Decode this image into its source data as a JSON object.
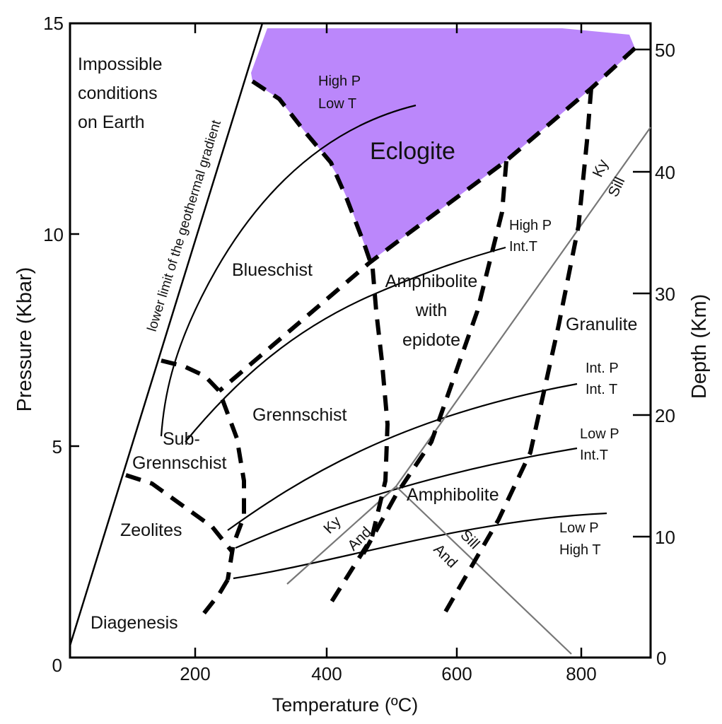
{
  "axes": {
    "x_label": "Temperature (ºC)",
    "y_left_label": "Pressure (Kbar)",
    "y_right_label": "Depth (Km)",
    "x_ticks": [
      "200",
      "400",
      "600",
      "800"
    ],
    "y_left_ticks": [
      "0",
      "5",
      "10",
      "15"
    ],
    "y_right_ticks": [
      "0",
      "10",
      "20",
      "30",
      "40",
      "50"
    ]
  },
  "regions": {
    "impossible": [
      "Impossible",
      "conditions",
      "on Earth"
    ],
    "geothermal_limit": "lower limit of the geothermal gradient",
    "eclogite": "Eclogite",
    "blueschist": "Blueschist",
    "amphibolite_epidote": [
      "Amphibolite",
      "with",
      "epidote"
    ],
    "granulite": "Granulite",
    "greenschist": "Grennschist",
    "sub_greenschist": [
      "Sub-",
      "Grennschist"
    ],
    "zeolites": "Zeolites",
    "diagenesis": "Diagenesis",
    "amphibolite": "Amphibolite"
  },
  "gradients": {
    "high_p_low_t": [
      "High P",
      "Low T"
    ],
    "high_p_int_t": [
      "High P",
      "Int.T"
    ],
    "int_p_int_t": [
      "Int. P",
      "Int. T"
    ],
    "low_p_int_t": [
      "Low P",
      "Int.T"
    ],
    "low_p_high_t": [
      "Low P",
      "High T"
    ]
  },
  "aluminosilicates": {
    "ky_sill": [
      "Ky",
      "Sill"
    ],
    "ky_and": [
      "Ky",
      "And"
    ],
    "and_sill": [
      "And",
      "Sill"
    ]
  },
  "colors": {
    "eclogite_fill": "#bb87fb",
    "phase_line": "#777777",
    "boundary": "#000000"
  }
}
